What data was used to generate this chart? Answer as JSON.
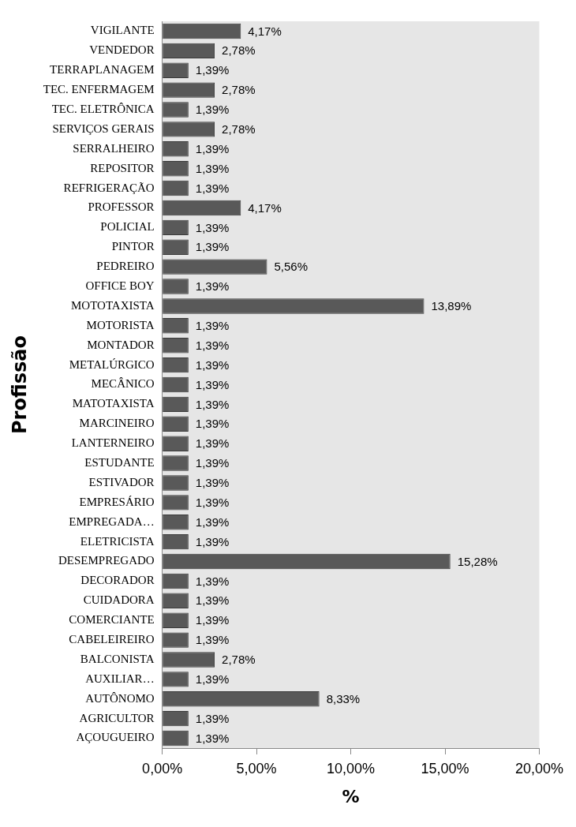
{
  "chart_data": {
    "type": "bar",
    "orientation": "horizontal",
    "xlabel": "%",
    "ylabel": "Profissão",
    "categories": [
      "VIGILANTE",
      "VENDEDOR",
      "TERRAPLANAGEM",
      "TEC. ENFERMAGEM",
      "TEC. ELETRÔNICA",
      "SERVIÇOS GERAIS",
      "SERRALHEIRO",
      "REPOSITOR",
      "REFRIGERAÇÃO",
      "PROFESSOR",
      "POLICIAL",
      "PINTOR",
      "PEDREIRO",
      "OFFICE BOY",
      "MOTOTAXISTA",
      "MOTORISTA",
      "MONTADOR",
      "METALÚRGICO",
      "MECÂNICO",
      "MATOTAXISTA",
      "MARCINEIRO",
      "LANTERNEIRO",
      "ESTUDANTE",
      "ESTIVADOR",
      "EMPRESÁRIO",
      "EMPREGADA…",
      "ELETRICISTA",
      "DESEMPREGADO",
      "DECORADOR",
      "CUIDADORA",
      "COMERCIANTE",
      "CABELEIREIRO",
      "BALCONISTA",
      "AUXILIAR…",
      "AUTÔNOMO",
      "AGRICULTOR",
      "AÇOUGUEIRO"
    ],
    "values": [
      4.17,
      2.78,
      1.39,
      2.78,
      1.39,
      2.78,
      1.39,
      1.39,
      1.39,
      4.17,
      1.39,
      1.39,
      5.56,
      1.39,
      13.89,
      1.39,
      1.39,
      1.39,
      1.39,
      1.39,
      1.39,
      1.39,
      1.39,
      1.39,
      1.39,
      1.39,
      1.39,
      15.28,
      1.39,
      1.39,
      1.39,
      1.39,
      2.78,
      1.39,
      8.33,
      1.39,
      1.39
    ],
    "value_labels": [
      "4,17%",
      "2,78%",
      "1,39%",
      "2,78%",
      "1,39%",
      "2,78%",
      "1,39%",
      "1,39%",
      "1,39%",
      "4,17%",
      "1,39%",
      "1,39%",
      "5,56%",
      "1,39%",
      "13,89%",
      "1,39%",
      "1,39%",
      "1,39%",
      "1,39%",
      "1,39%",
      "1,39%",
      "1,39%",
      "1,39%",
      "1,39%",
      "1,39%",
      "1,39%",
      "1,39%",
      "15,28%",
      "1,39%",
      "1,39%",
      "1,39%",
      "1,39%",
      "2,78%",
      "1,39%",
      "8,33%",
      "1,39%",
      "1,39%"
    ],
    "color": "#595959",
    "xlim": [
      0,
      20
    ],
    "xticks": [
      {
        "value": 0,
        "label": "0,00%"
      },
      {
        "value": 5,
        "label": "5,00%"
      },
      {
        "value": 10,
        "label": "10,00%"
      },
      {
        "value": 15,
        "label": "15,00%"
      },
      {
        "value": 20,
        "label": "20,00%"
      }
    ],
    "grid": false,
    "legend": false
  }
}
